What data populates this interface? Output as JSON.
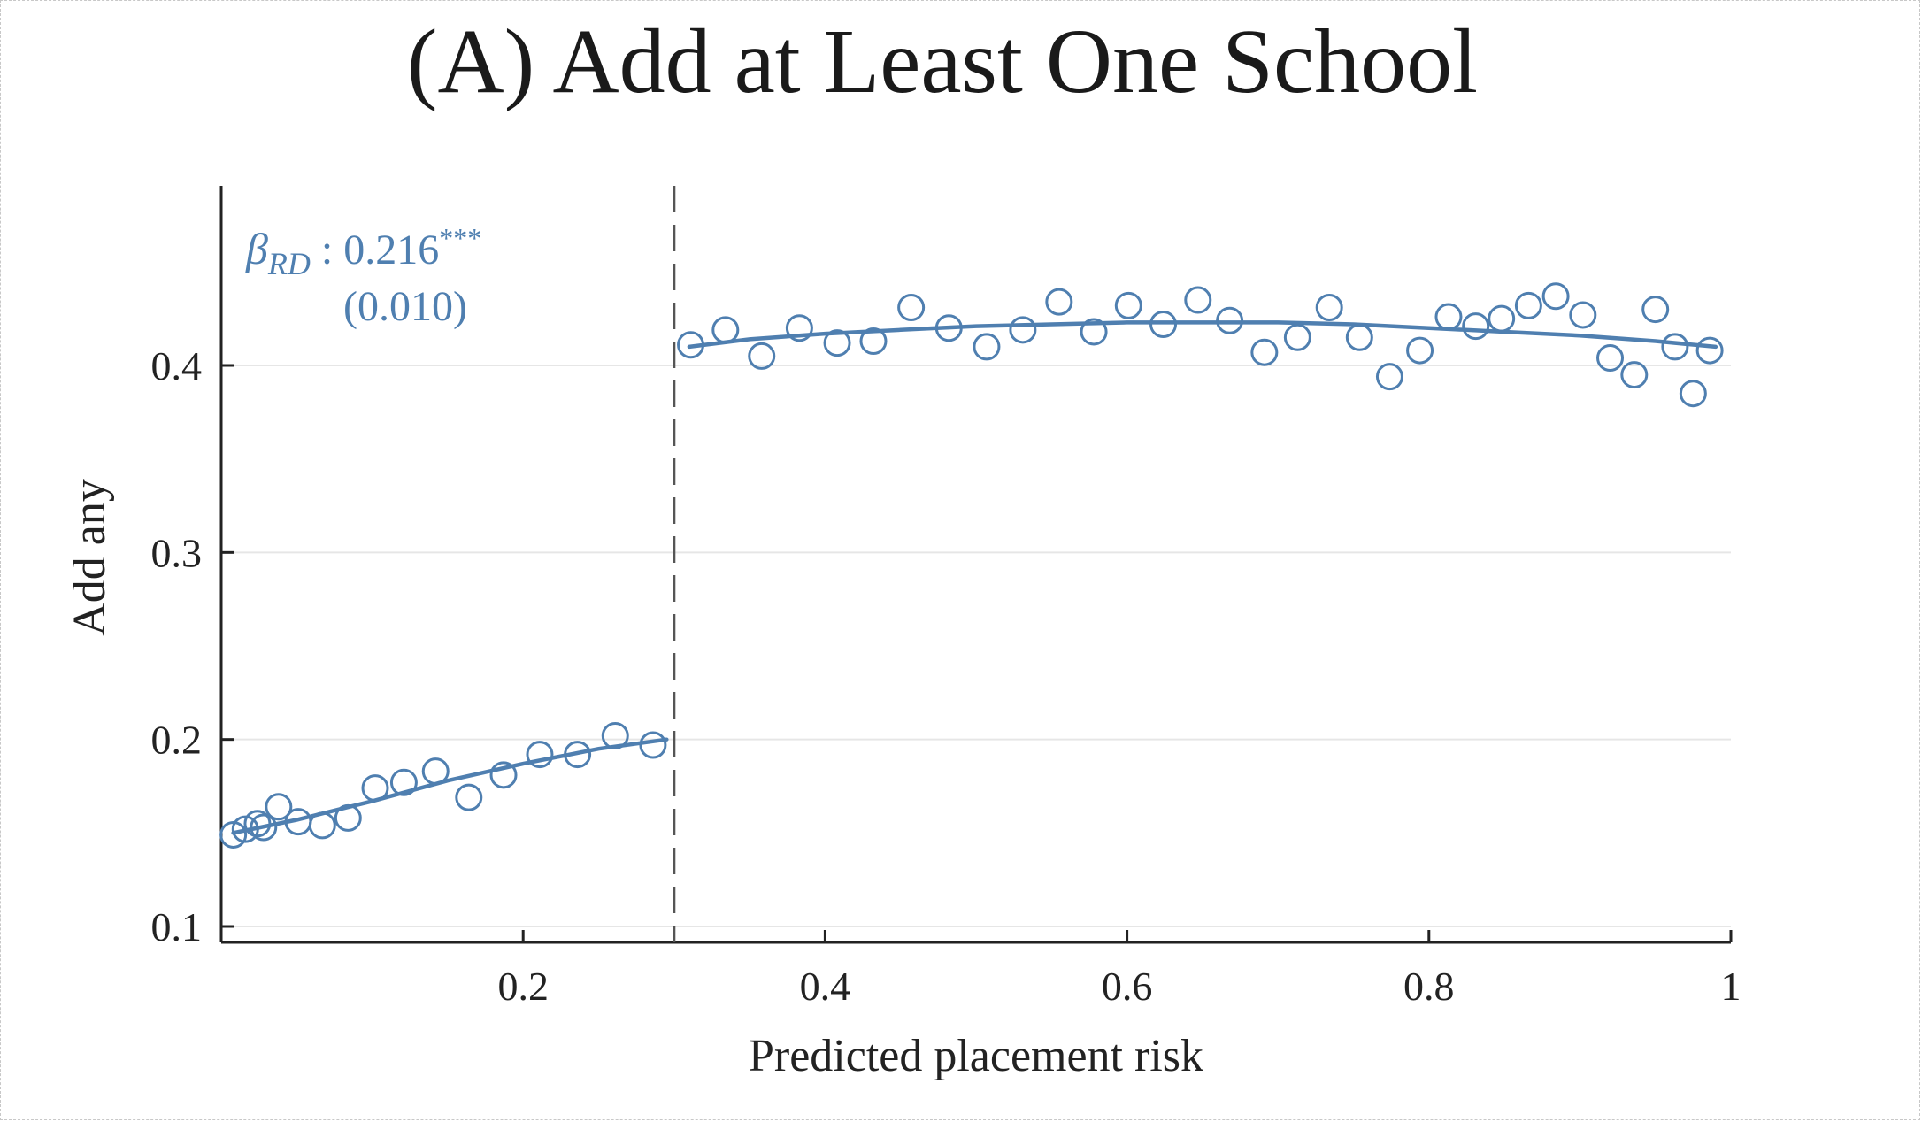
{
  "chart_data": {
    "type": "scatter",
    "title": "(A) Add at Least One School",
    "xlabel": "Predicted placement risk",
    "ylabel": "Add any",
    "xlim": [
      0,
      1
    ],
    "ylim": [
      0.09,
      0.49
    ],
    "xticks": [
      {
        "value": 0.2,
        "label": "0.2"
      },
      {
        "value": 0.4,
        "label": "0.4"
      },
      {
        "value": 0.6,
        "label": "0.6"
      },
      {
        "value": 0.8,
        "label": "0.8"
      },
      {
        "value": 1.0,
        "label": "1"
      }
    ],
    "yticks": [
      {
        "value": 0.1,
        "label": "0.1"
      },
      {
        "value": 0.2,
        "label": "0.2"
      },
      {
        "value": 0.3,
        "label": "0.3"
      },
      {
        "value": 0.4,
        "label": "0.4"
      }
    ],
    "grid": {
      "horizontal": true,
      "vertical": false
    },
    "cutoff": 0.3,
    "marker_color": "#4f7fb0",
    "annotation": {
      "beta_symbol": "β",
      "beta_subscript": "RD",
      "estimate": " : 0.216",
      "stars": "***",
      "se": "(0.010)"
    },
    "points": [
      {
        "x": 0.008,
        "y": 0.149
      },
      {
        "x": 0.016,
        "y": 0.152
      },
      {
        "x": 0.024,
        "y": 0.155
      },
      {
        "x": 0.028,
        "y": 0.153
      },
      {
        "x": 0.038,
        "y": 0.164
      },
      {
        "x": 0.051,
        "y": 0.156
      },
      {
        "x": 0.067,
        "y": 0.154
      },
      {
        "x": 0.084,
        "y": 0.158
      },
      {
        "x": 0.102,
        "y": 0.174
      },
      {
        "x": 0.121,
        "y": 0.177
      },
      {
        "x": 0.142,
        "y": 0.183
      },
      {
        "x": 0.164,
        "y": 0.169
      },
      {
        "x": 0.187,
        "y": 0.181
      },
      {
        "x": 0.211,
        "y": 0.192
      },
      {
        "x": 0.236,
        "y": 0.192
      },
      {
        "x": 0.261,
        "y": 0.202
      },
      {
        "x": 0.286,
        "y": 0.197
      },
      {
        "x": 0.311,
        "y": 0.411
      },
      {
        "x": 0.334,
        "y": 0.419
      },
      {
        "x": 0.358,
        "y": 0.405
      },
      {
        "x": 0.383,
        "y": 0.42
      },
      {
        "x": 0.408,
        "y": 0.412
      },
      {
        "x": 0.432,
        "y": 0.413
      },
      {
        "x": 0.457,
        "y": 0.431
      },
      {
        "x": 0.482,
        "y": 0.42
      },
      {
        "x": 0.507,
        "y": 0.41
      },
      {
        "x": 0.531,
        "y": 0.419
      },
      {
        "x": 0.555,
        "y": 0.434
      },
      {
        "x": 0.578,
        "y": 0.418
      },
      {
        "x": 0.601,
        "y": 0.432
      },
      {
        "x": 0.624,
        "y": 0.422
      },
      {
        "x": 0.647,
        "y": 0.435
      },
      {
        "x": 0.668,
        "y": 0.424
      },
      {
        "x": 0.691,
        "y": 0.407
      },
      {
        "x": 0.713,
        "y": 0.415
      },
      {
        "x": 0.734,
        "y": 0.431
      },
      {
        "x": 0.754,
        "y": 0.415
      },
      {
        "x": 0.774,
        "y": 0.394
      },
      {
        "x": 0.794,
        "y": 0.408
      },
      {
        "x": 0.813,
        "y": 0.426
      },
      {
        "x": 0.831,
        "y": 0.421
      },
      {
        "x": 0.848,
        "y": 0.425
      },
      {
        "x": 0.866,
        "y": 0.432
      },
      {
        "x": 0.884,
        "y": 0.437
      },
      {
        "x": 0.902,
        "y": 0.427
      },
      {
        "x": 0.92,
        "y": 0.404
      },
      {
        "x": 0.936,
        "y": 0.395
      },
      {
        "x": 0.95,
        "y": 0.43
      },
      {
        "x": 0.963,
        "y": 0.41
      },
      {
        "x": 0.975,
        "y": 0.385
      },
      {
        "x": 0.986,
        "y": 0.408
      }
    ],
    "fit_left": [
      {
        "x": 0.008,
        "y": 0.15
      },
      {
        "x": 0.05,
        "y": 0.157
      },
      {
        "x": 0.1,
        "y": 0.167
      },
      {
        "x": 0.15,
        "y": 0.178
      },
      {
        "x": 0.2,
        "y": 0.187
      },
      {
        "x": 0.25,
        "y": 0.195
      },
      {
        "x": 0.295,
        "y": 0.2
      }
    ],
    "fit_right": [
      {
        "x": 0.31,
        "y": 0.41
      },
      {
        "x": 0.35,
        "y": 0.414
      },
      {
        "x": 0.4,
        "y": 0.417
      },
      {
        "x": 0.45,
        "y": 0.419
      },
      {
        "x": 0.5,
        "y": 0.421
      },
      {
        "x": 0.55,
        "y": 0.422
      },
      {
        "x": 0.6,
        "y": 0.423
      },
      {
        "x": 0.65,
        "y": 0.423
      },
      {
        "x": 0.7,
        "y": 0.423
      },
      {
        "x": 0.75,
        "y": 0.422
      },
      {
        "x": 0.8,
        "y": 0.42
      },
      {
        "x": 0.85,
        "y": 0.418
      },
      {
        "x": 0.9,
        "y": 0.416
      },
      {
        "x": 0.95,
        "y": 0.413
      },
      {
        "x": 0.99,
        "y": 0.41
      }
    ]
  }
}
